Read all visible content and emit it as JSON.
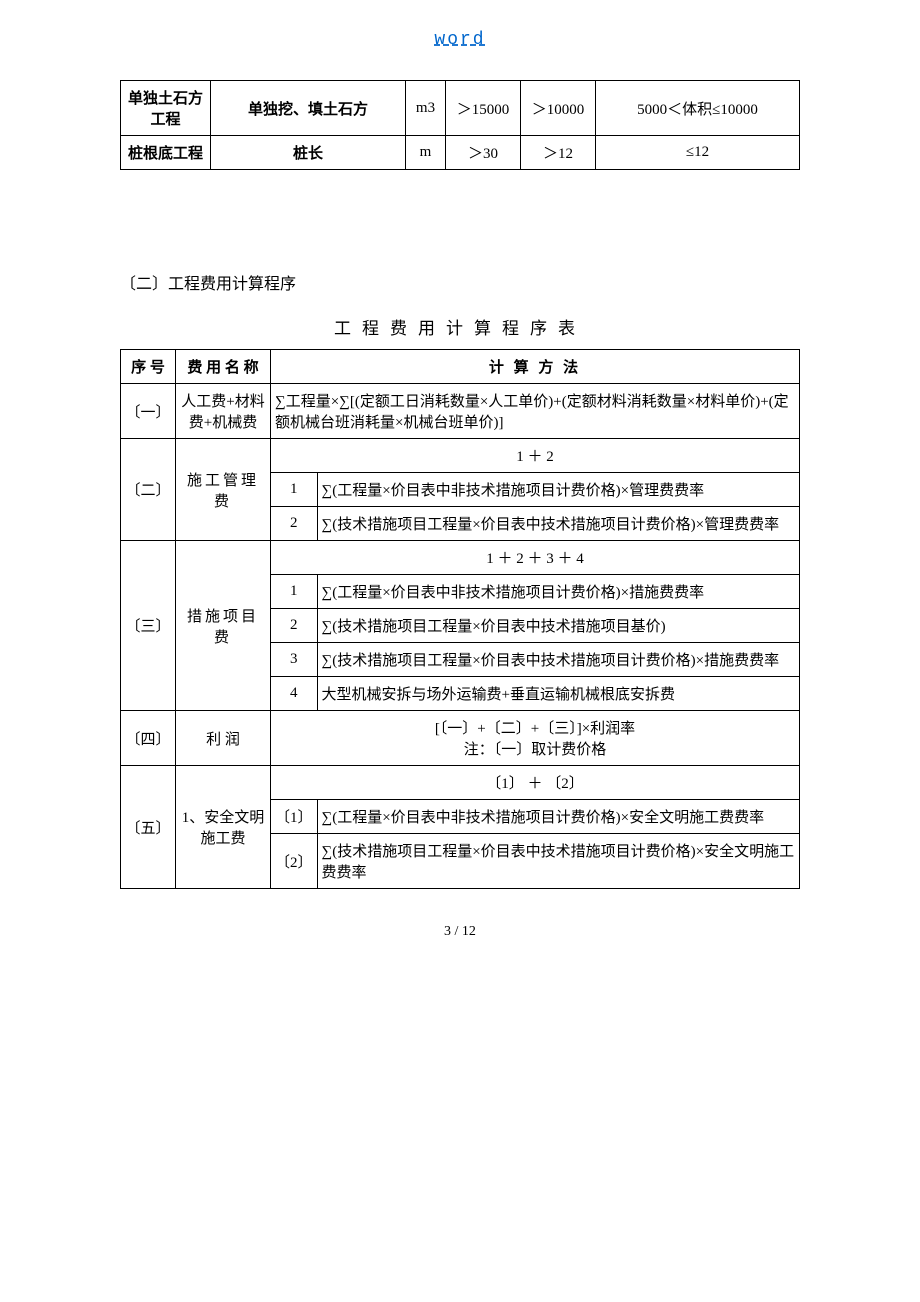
{
  "header": {
    "link_text": "word"
  },
  "table1": {
    "rows": [
      {
        "col1": "单独土石方工程",
        "col2": "单独挖、填土石方",
        "col3": "m3",
        "col4": "＞15000",
        "col5": "＞10000",
        "col6": "5000＜体积≤10000"
      },
      {
        "col1": "桩根底工程",
        "col2": "桩长",
        "col3": "m",
        "col4": "＞30",
        "col5": "＞12",
        "col6": "≤12"
      }
    ]
  },
  "section_heading": "〔二〕工程费用计算程序",
  "table2_title": "工程费用计算程序表",
  "table2": {
    "header": {
      "seq": "序 号",
      "name": "费 用 名 称",
      "method": "计 算 方 法"
    },
    "row1": {
      "seq": "〔一〕",
      "name": "人工费+材料费+机械费",
      "method": "∑工程量×∑[(定额工日消耗数量×人工单价)+(定额材料消耗数量×材料单价)+(定额机械台班消耗量×机械台班单价)]"
    },
    "row2": {
      "seq": "〔二〕",
      "name": "施工管理费",
      "sum": "1 ＋ 2",
      "sub1_num": "1",
      "sub1_text": "∑(工程量×价目表中非技术措施项目计费价格)×管理费费率",
      "sub2_num": "2",
      "sub2_text": "∑(技术措施项目工程量×价目表中技术措施项目计费价格)×管理费费率"
    },
    "row3": {
      "seq": "〔三〕",
      "name": "措施项目费",
      "sum": "1 ＋ 2 ＋ 3 ＋ 4",
      "sub1_num": "1",
      "sub1_text": "∑(工程量×价目表中非技术措施项目计费价格)×措施费费率",
      "sub2_num": "2",
      "sub2_text": "∑(技术措施项目工程量×价目表中技术措施项目基价)",
      "sub3_num": "3",
      "sub3_text": "∑(技术措施项目工程量×价目表中技术措施项目计费价格)×措施费费率",
      "sub4_num": "4",
      "sub4_text": "大型机械安拆与场外运输费+垂直运输机械根底安拆费"
    },
    "row4": {
      "seq": "〔四〕",
      "name": "利 润",
      "line1": "[〔一〕+〔二〕+〔三〕]×利润率",
      "line2": "注：〔一〕取计费价格"
    },
    "row5": {
      "seq": "〔五〕",
      "name": "1、安全文明施工费",
      "sum": "〔1〕 ＋ 〔2〕",
      "sub1_num": "〔1〕",
      "sub1_text": "∑(工程量×价目表中非技术措施项目计费价格)×安全文明施工费费率",
      "sub2_num": "〔2〕",
      "sub2_text": "∑(技术措施项目工程量×价目表中技术措施项目计费价格)×安全文明施工费费率"
    }
  },
  "footer": {
    "page": "3 / 12"
  }
}
